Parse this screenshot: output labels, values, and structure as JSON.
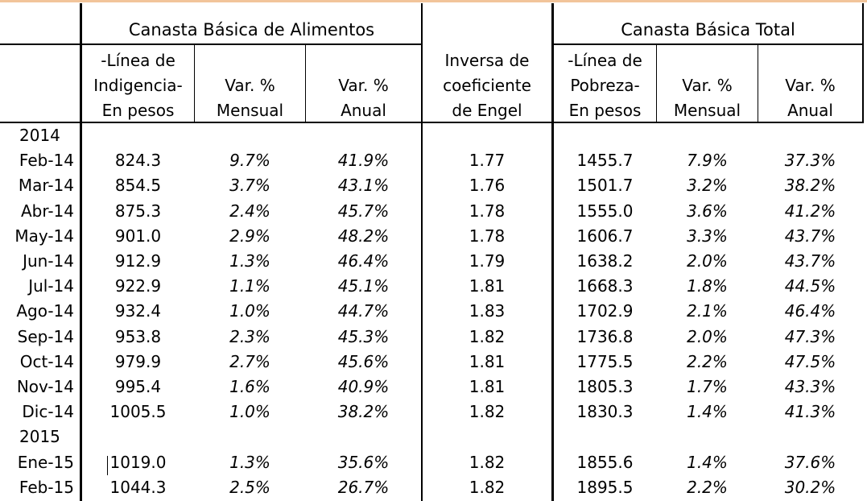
{
  "headers": {
    "group_basic_food": "Canasta Básica de Alimentos",
    "group_total": "Canasta Básica Total",
    "col_indigencia": [
      "-Línea de",
      "Indigencia-",
      "En pesos"
    ],
    "col_var_mensual": [
      "Var. %",
      "Mensual"
    ],
    "col_var_anual": [
      "Var. %",
      "Anual"
    ],
    "col_engel": [
      "Inversa de",
      "coeficiente",
      "de Engel"
    ],
    "col_pobreza": [
      "-Línea de",
      "Pobreza-",
      "En pesos"
    ],
    "col_var_mensual_2": [
      "Var. %",
      "Mensual"
    ],
    "col_var_anual_2": [
      "Var. %",
      "Anual"
    ]
  },
  "rows": [
    {
      "type": "year",
      "label": "2014"
    },
    {
      "type": "data",
      "label": "Feb-14",
      "cba": "824.3",
      "cba_m": "9.7%",
      "cba_a": "41.9%",
      "engel": "1.77",
      "cbt": "1455.7",
      "cbt_m": "7.9%",
      "cbt_a": "37.3%"
    },
    {
      "type": "data",
      "label": "Mar-14",
      "cba": "854.5",
      "cba_m": "3.7%",
      "cba_a": "43.1%",
      "engel": "1.76",
      "cbt": "1501.7",
      "cbt_m": "3.2%",
      "cbt_a": "38.2%"
    },
    {
      "type": "data",
      "label": "Abr-14",
      "cba": "875.3",
      "cba_m": "2.4%",
      "cba_a": "45.7%",
      "engel": "1.78",
      "cbt": "1555.0",
      "cbt_m": "3.6%",
      "cbt_a": "41.2%"
    },
    {
      "type": "data",
      "label": "May-14",
      "cba": "901.0",
      "cba_m": "2.9%",
      "cba_a": "48.2%",
      "engel": "1.78",
      "cbt": "1606.7",
      "cbt_m": "3.3%",
      "cbt_a": "43.7%"
    },
    {
      "type": "data",
      "label": "Jun-14",
      "cba": "912.9",
      "cba_m": "1.3%",
      "cba_a": "46.4%",
      "engel": "1.79",
      "cbt": "1638.2",
      "cbt_m": "2.0%",
      "cbt_a": "43.7%"
    },
    {
      "type": "data",
      "label": "Jul-14",
      "cba": "922.9",
      "cba_m": "1.1%",
      "cba_a": "45.1%",
      "engel": "1.81",
      "cbt": "1668.3",
      "cbt_m": "1.8%",
      "cbt_a": "44.5%"
    },
    {
      "type": "data",
      "label": "Ago-14",
      "cba": "932.4",
      "cba_m": "1.0%",
      "cba_a": "44.7%",
      "engel": "1.83",
      "cbt": "1702.9",
      "cbt_m": "2.1%",
      "cbt_a": "46.4%"
    },
    {
      "type": "data",
      "label": "Sep-14",
      "cba": "953.8",
      "cba_m": "2.3%",
      "cba_a": "45.3%",
      "engel": "1.82",
      "cbt": "1736.8",
      "cbt_m": "2.0%",
      "cbt_a": "47.3%"
    },
    {
      "type": "data",
      "label": "Oct-14",
      "cba": "979.9",
      "cba_m": "2.7%",
      "cba_a": "45.6%",
      "engel": "1.81",
      "cbt": "1775.5",
      "cbt_m": "2.2%",
      "cbt_a": "47.5%"
    },
    {
      "type": "data",
      "label": "Nov-14",
      "cba": "995.4",
      "cba_m": "1.6%",
      "cba_a": "40.9%",
      "engel": "1.81",
      "cbt": "1805.3",
      "cbt_m": "1.7%",
      "cbt_a": "43.3%"
    },
    {
      "type": "data",
      "label": "Dic-14",
      "cba": "1005.5",
      "cba_m": "1.0%",
      "cba_a": "38.2%",
      "engel": "1.82",
      "cbt": "1830.3",
      "cbt_m": "1.4%",
      "cbt_a": "41.3%"
    },
    {
      "type": "year",
      "label": "2015"
    },
    {
      "type": "data",
      "label": "Ene-15",
      "cba": "1019.0",
      "cba_m": "1.3%",
      "cba_a": "35.6%",
      "engel": "1.82",
      "cbt": "1855.6",
      "cbt_m": "1.4%",
      "cbt_a": "37.6%"
    },
    {
      "type": "data",
      "label": "Feb-15",
      "cba": "1044.3",
      "cba_m": "2.5%",
      "cba_a": "26.7%",
      "engel": "1.82",
      "cbt": "1895.5",
      "cbt_m": "2.2%",
      "cbt_a": "30.2%"
    }
  ]
}
